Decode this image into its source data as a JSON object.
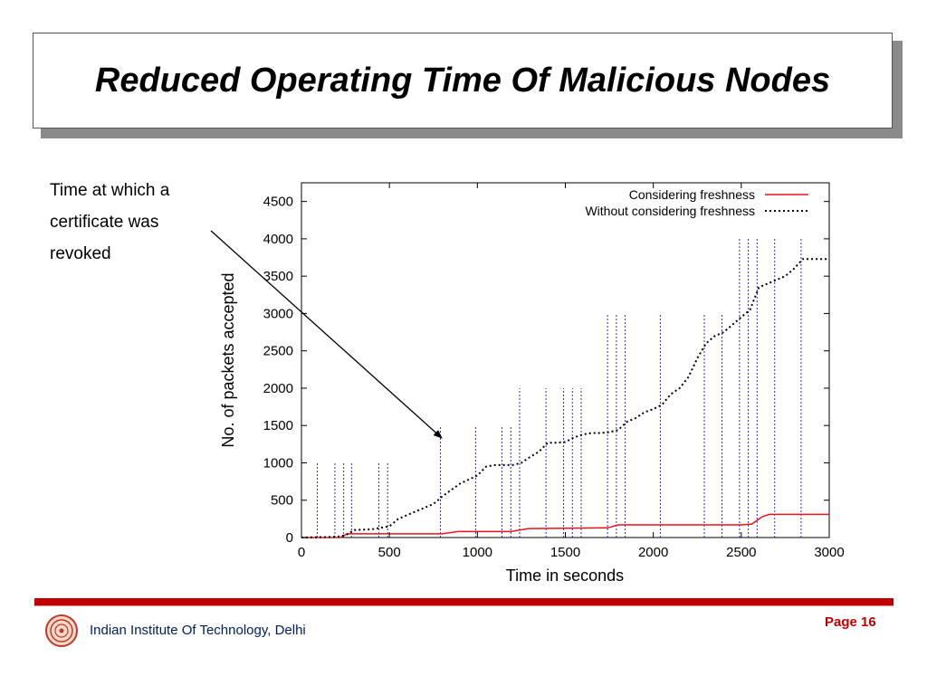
{
  "slide": {
    "title": "Reduced Operating Time Of Malicious Nodes",
    "callout_lines": [
      "Time at which a",
      "certificate was",
      "revoked"
    ],
    "footer_org": "Indian Institute Of Technology, Delhi",
    "page_label": "Page 16",
    "colors": {
      "accent": "#c00000",
      "footer_text": "#002060"
    }
  },
  "chart_data": {
    "type": "line",
    "xlabel": "Time in seconds",
    "ylabel": "No. of packets accepted",
    "xlim": [
      0,
      3000
    ],
    "ylim": [
      0,
      4750
    ],
    "xticks": [
      0,
      500,
      1000,
      1500,
      2000,
      2500,
      3000
    ],
    "yticks": [
      0,
      500,
      1000,
      1500,
      2000,
      2500,
      3000,
      3500,
      4000,
      4500
    ],
    "legend_position": "top-right",
    "series": [
      {
        "name": "Considering freshness",
        "style": "solid",
        "color": "#e8141c",
        "x": [
          0,
          220,
          260,
          800,
          890,
          1190,
          1290,
          1740,
          1800,
          2500,
          2560,
          2620,
          2660,
          3000
        ],
        "y": [
          0,
          0,
          50,
          50,
          80,
          80,
          120,
          130,
          170,
          170,
          180,
          280,
          310,
          310
        ]
      },
      {
        "name": "Without considering freshness",
        "style": "dotted",
        "color": "#000000",
        "x": [
          0,
          200,
          250,
          300,
          400,
          500,
          550,
          650,
          750,
          800,
          900,
          1000,
          1050,
          1100,
          1150,
          1200,
          1250,
          1300,
          1350,
          1400,
          1450,
          1500,
          1550,
          1600,
          1650,
          1700,
          1750,
          1800,
          1850,
          1900,
          1950,
          2000,
          2050,
          2100,
          2150,
          2200,
          2250,
          2300,
          2350,
          2400,
          2450,
          2500,
          2550,
          2600,
          2650,
          2700,
          2750,
          2800,
          2850,
          3000
        ],
        "y": [
          0,
          10,
          30,
          100,
          110,
          150,
          250,
          350,
          450,
          550,
          720,
          830,
          950,
          970,
          970,
          970,
          1000,
          1080,
          1150,
          1270,
          1270,
          1280,
          1340,
          1380,
          1400,
          1400,
          1410,
          1440,
          1550,
          1600,
          1680,
          1720,
          1780,
          1920,
          2000,
          2150,
          2400,
          2600,
          2700,
          2750,
          2850,
          2950,
          3050,
          3350,
          3400,
          3450,
          3500,
          3600,
          3730,
          3730
        ]
      }
    ],
    "revocation_markers": {
      "color": "#2a2ad0",
      "style": "dotted",
      "x": [
        90,
        190,
        240,
        285,
        440,
        490,
        790,
        990,
        1140,
        1190,
        1240,
        1390,
        1490,
        1540,
        1590,
        1740,
        1790,
        1840,
        2040,
        2290,
        2390,
        2490,
        2540,
        2590,
        2690,
        2840
      ],
      "top": [
        1000,
        1000,
        1000,
        1000,
        1000,
        1000,
        1500,
        1500,
        1500,
        1500,
        2000,
        2000,
        2000,
        2000,
        2000,
        3000,
        3000,
        3000,
        3000,
        3000,
        3000,
        4000,
        4000,
        4000,
        4000,
        4000
      ]
    }
  }
}
